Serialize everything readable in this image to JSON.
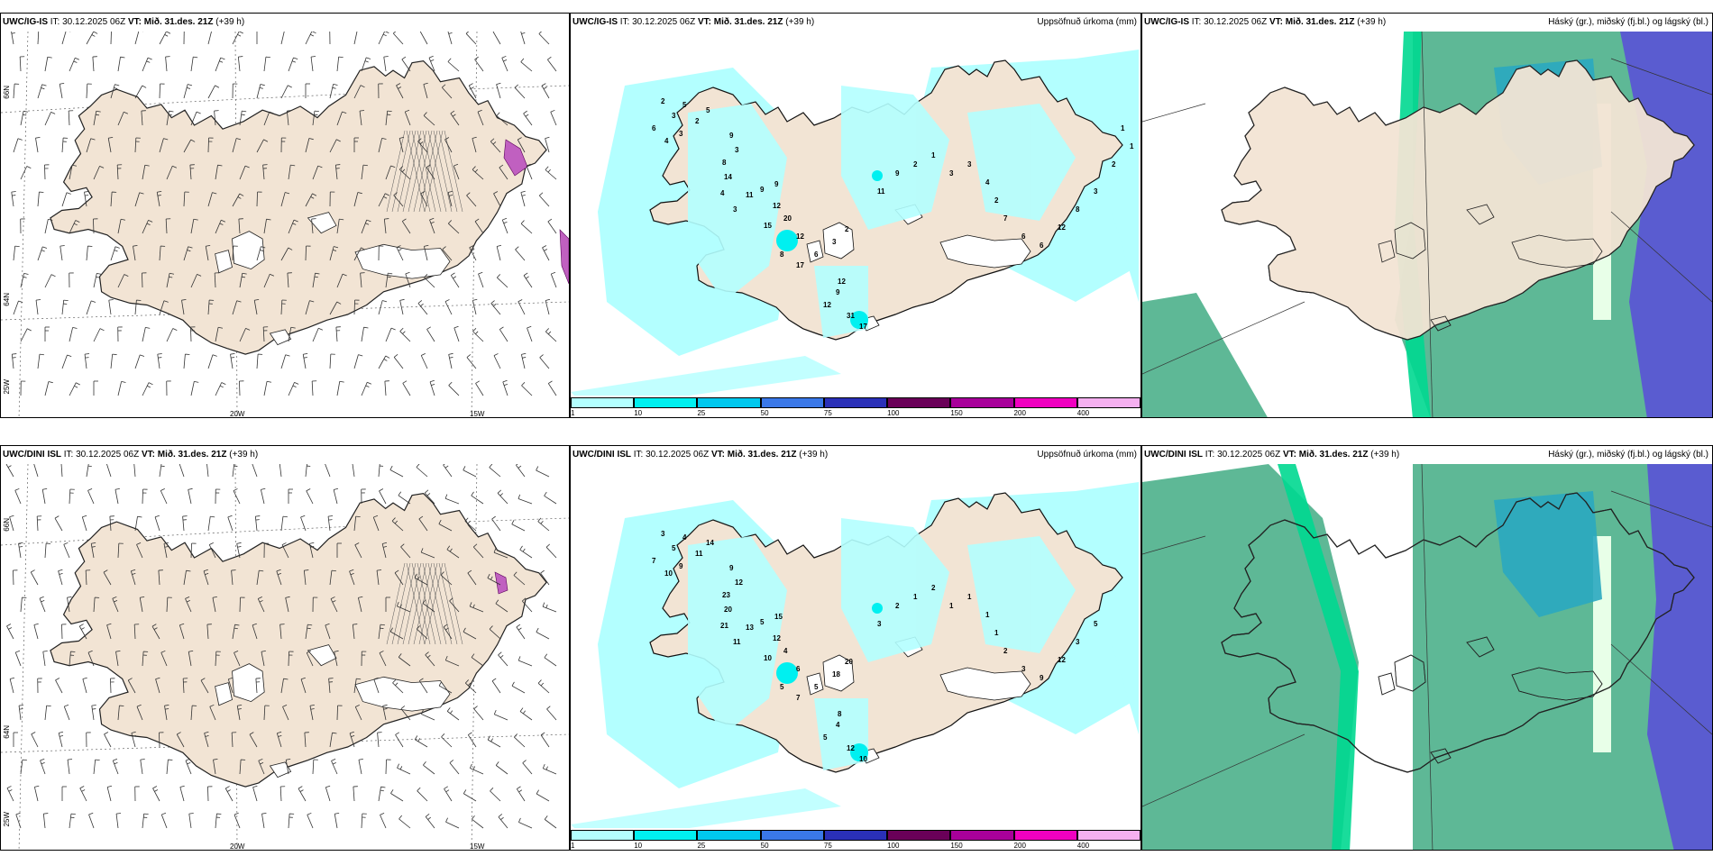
{
  "panels_top": {
    "wind": {
      "model": "UWC/IG-IS",
      "it_label": "IT:",
      "it": "30.12.2025 06Z",
      "vt_label": "VT:",
      "vt": "Mið. 31.des. 21Z",
      "lead": "(+39 h)",
      "lon_labels": [
        "20W",
        "15W"
      ],
      "lat_labels": [
        "66N",
        "64N",
        "25W"
      ]
    },
    "precip": {
      "model": "UWC/IG-IS",
      "it_label": "IT:",
      "it": "30.12.2025 06Z",
      "vt_label": "VT:",
      "vt": "Mið. 31.des. 21Z",
      "lead": "(+39 h)",
      "field": "Uppsöfnuð úrkoma (mm)",
      "values": [
        "2",
        "3",
        "5",
        "6",
        "4",
        "3",
        "2",
        "5",
        "9",
        "3",
        "8",
        "14",
        "4",
        "3",
        "11",
        "9",
        "9",
        "12",
        "15",
        "20",
        "12",
        "8",
        "17",
        "6",
        "3",
        "2",
        "12",
        "9",
        "12",
        "31",
        "17",
        "11",
        "9",
        "2",
        "1",
        "3",
        "3",
        "4",
        "2",
        "7",
        "6",
        "6",
        "12",
        "8",
        "3",
        "2",
        "1",
        "1"
      ]
    },
    "cloud": {
      "model": "UWC/IG-IS",
      "it_label": "IT:",
      "it": "30.12.2025 06Z",
      "vt_label": "VT:",
      "vt": "Mið. 31.des. 21Z",
      "lead": "(+39 h)",
      "field": "Háský (gr.), miðský (fj.bl.) og lágský (bl.)"
    }
  },
  "panels_bottom": {
    "wind": {
      "model": "UWC/DINI ISL",
      "it_label": "IT:",
      "it": "30.12.2025 06Z",
      "vt_label": "VT:",
      "vt": "Mið. 31.des. 21Z",
      "lead": "(+39 h)",
      "lon_labels": [
        "20W",
        "15W"
      ],
      "lat_labels": [
        "66N",
        "64N",
        "25W"
      ]
    },
    "precip": {
      "model": "UWC/DINI ISL",
      "it_label": "IT:",
      "it": "30.12.2025 06Z",
      "vt_label": "VT:",
      "vt": "Mið. 31.des. 21Z",
      "lead": "(+39 h)",
      "field": "Uppsöfnuð úrkoma (mm)",
      "values": [
        "3",
        "5",
        "4",
        "7",
        "10",
        "9",
        "11",
        "14",
        "9",
        "12",
        "23",
        "20",
        "21",
        "11",
        "13",
        "5",
        "15",
        "12",
        "10",
        "4",
        "6",
        "5",
        "7",
        "5",
        "18",
        "20",
        "8",
        "4",
        "5",
        "12",
        "10",
        "3",
        "2",
        "1",
        "2",
        "1",
        "1",
        "1",
        "1",
        "2",
        "3",
        "9",
        "12",
        "3",
        "5"
      ]
    },
    "cloud": {
      "model": "UWC/DINI ISL",
      "it_label": "IT:",
      "it": "30.12.2025 06Z",
      "vt_label": "VT:",
      "vt": "Mið. 31.des. 21Z",
      "lead": "(+39 h)",
      "field": "Háský (gr.), miðský (fj.bl.) og lágský (bl.)"
    }
  },
  "colorbar": {
    "labels": [
      "1",
      "10",
      "25",
      "50",
      "75",
      "100",
      "150",
      "200",
      "400"
    ],
    "colors": [
      "#b3ffff",
      "#00f0f0",
      "#00c8ee",
      "#3a78e8",
      "#2a30b8",
      "#6a0058",
      "#a8009a",
      "#f000c0",
      "#f5b0f0"
    ]
  },
  "colors": {
    "land": "#f2e4d4",
    "precip_light": "#b3ffff",
    "precip_mid": "#00f0f0",
    "cloud_high": "#5eb896",
    "cloud_mid": "#2aa8c0",
    "cloud_low": "#5a5cd0",
    "cloud_edge": "#00d890"
  }
}
